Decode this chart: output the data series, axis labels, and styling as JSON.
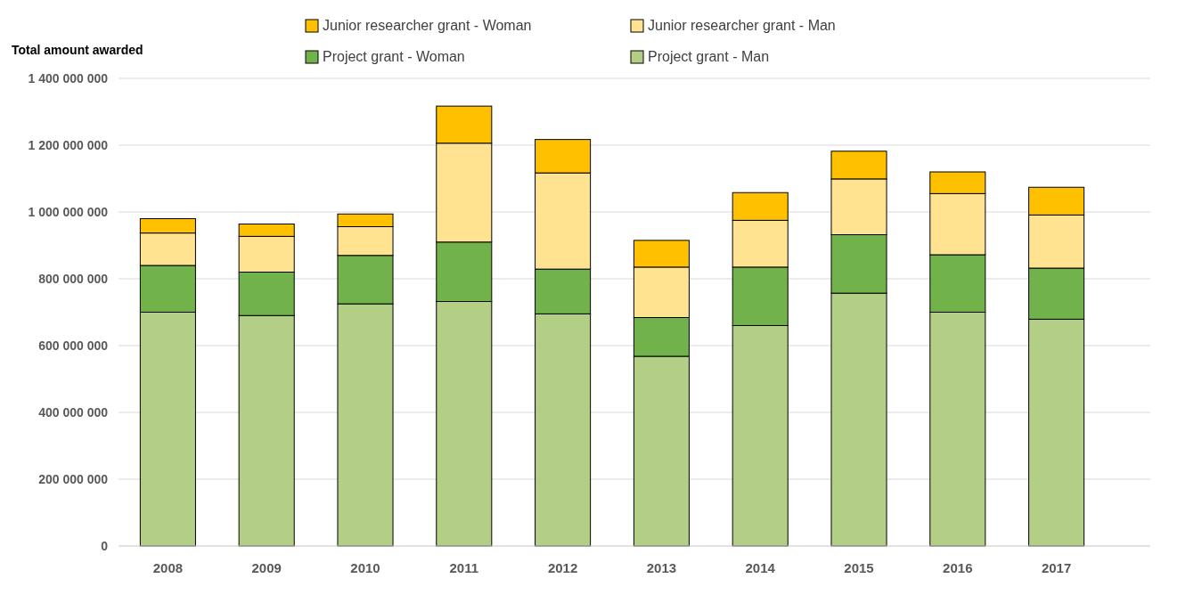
{
  "chart_data": {
    "type": "bar",
    "stacked": true,
    "ylabel": "Total amount awarded",
    "categories": [
      "2008",
      "2009",
      "2010",
      "2011",
      "2012",
      "2013",
      "2014",
      "2015",
      "2016",
      "2017"
    ],
    "series": [
      {
        "name": "Project grant - Man",
        "color": "#b3cf86",
        "values": [
          700000000,
          690000000,
          725000000,
          732000000,
          695000000,
          568000000,
          660000000,
          757000000,
          700000000,
          679000000
        ]
      },
      {
        "name": "Project grant - Woman",
        "color": "#72b24a",
        "values": [
          140000000,
          130000000,
          145000000,
          178000000,
          134000000,
          116000000,
          175000000,
          175000000,
          172000000,
          153000000
        ]
      },
      {
        "name": "Junior researcher grant - Man",
        "color": "#ffe391",
        "values": [
          97000000,
          107000000,
          86000000,
          296000000,
          288000000,
          151000000,
          140000000,
          167000000,
          183000000,
          159000000
        ]
      },
      {
        "name": "Junior researcher grant - Woman",
        "color": "#ffc000",
        "values": [
          43000000,
          37000000,
          38000000,
          111000000,
          100000000,
          80000000,
          83000000,
          83000000,
          65000000,
          83000000
        ]
      }
    ],
    "ylim": [
      0,
      1400000000
    ],
    "yticks": [
      0,
      {
        "value": 200000000,
        "label": "200 000 000"
      },
      {
        "value": 400000000,
        "label": "400 000 000"
      },
      {
        "value": 600000000,
        "label": "600 000 000"
      },
      {
        "value": 800000000,
        "label": "800 000 000"
      },
      {
        "value": 1000000000,
        "label": "1 000 000 000"
      },
      {
        "value": 1200000000,
        "label": "1 200 000 000"
      },
      {
        "value": 1400000000,
        "label": "1 400 000 000"
      }
    ],
    "grid": "y",
    "legend": "top"
  }
}
